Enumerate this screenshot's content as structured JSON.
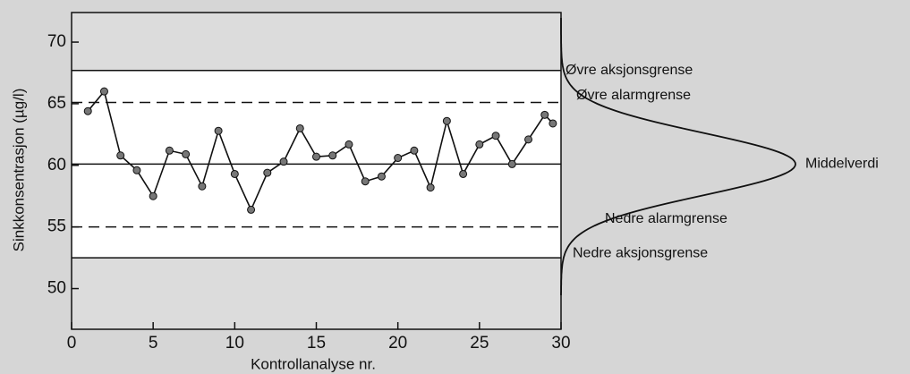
{
  "chart_data": {
    "type": "line",
    "xlabel": "Kontrollanalyse nr.",
    "ylabel": "Sinkkonsentrasjon (µg/l)",
    "x": [
      1,
      2,
      3,
      4,
      5,
      6,
      7,
      8,
      9,
      10,
      11,
      12,
      13,
      14,
      15,
      16,
      17,
      18,
      19,
      20,
      21,
      22,
      23,
      24,
      25,
      26,
      27,
      28,
      29,
      29.5
    ],
    "series": [
      {
        "color": "#111111",
        "values": [
          64.4,
          66.0,
          60.8,
          59.6,
          57.5,
          61.2,
          60.9,
          58.3,
          62.8,
          59.3,
          56.4,
          59.4,
          60.3,
          63.0,
          60.7,
          60.8,
          61.7,
          58.7,
          59.1,
          60.6,
          61.2,
          58.2,
          63.6,
          59.3,
          61.7,
          62.4,
          60.1,
          62.1,
          64.1,
          63.4
        ]
      }
    ],
    "xlim": [
      0,
      30
    ],
    "xticks": [
      0,
      5,
      10,
      15,
      20,
      25,
      30
    ],
    "ylim": [
      46.7,
      72.4
    ],
    "yticks": [
      50,
      55,
      60,
      65,
      70
    ],
    "reference_lines": [
      {
        "value": 67.7,
        "style": "solid",
        "label": "Øvre aksjonsgrense"
      },
      {
        "value": 65.1,
        "style": "dashed",
        "label": "Øvre alarmgrense"
      },
      {
        "value": 60.1,
        "style": "solid",
        "label": "Middelverdi"
      },
      {
        "value": 55.0,
        "style": "dashed",
        "label": "Nedre alarmgrense"
      },
      {
        "value": 52.5,
        "style": "solid",
        "label": "Nedre aksjonsgrense"
      }
    ]
  }
}
